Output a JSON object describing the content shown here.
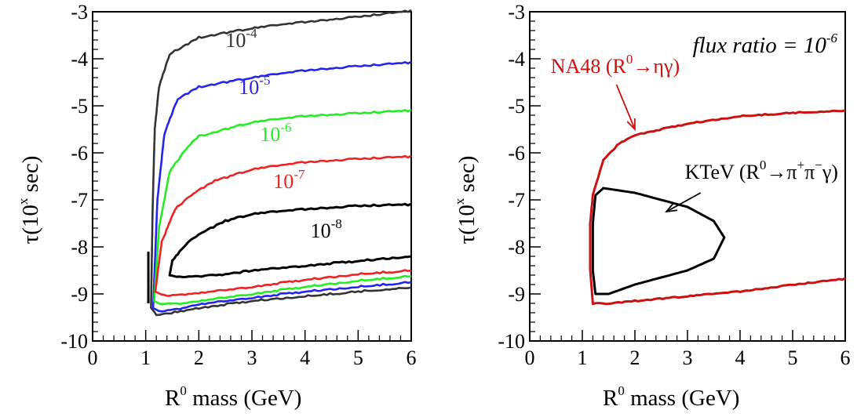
{
  "colors": {
    "black": "#000000",
    "blue": "#2424ee",
    "green": "#22ee22",
    "red": "#ee2222",
    "gray": "#333333",
    "darkred": "#cc1111"
  },
  "chart_data": [
    {
      "type": "line",
      "xlabel": "R0 mass (GeV)",
      "xlabel_parts": {
        "base": "R",
        "sup": "0",
        "rest": " mass (GeV)"
      },
      "ylabel": "τ(10x sec)",
      "ylabel_parts": {
        "pre": "τ(10",
        "sup": "x",
        "post": " sec)"
      },
      "xlim": [
        0,
        6
      ],
      "ylim": [
        -10,
        -3
      ],
      "xticks": [
        "0",
        "1",
        "2",
        "3",
        "4",
        "5",
        "6"
      ],
      "yticks": [
        "-10",
        "-9",
        "-8",
        "-7",
        "-6",
        "-5",
        "-4",
        "-3"
      ],
      "grid": false,
      "series": [
        {
          "name": "10-4",
          "label_base": "10",
          "label_sup": "-4",
          "color": "#333333",
          "label_pos": [
            2.8,
            -3.75
          ],
          "upper": [
            [
              1.1,
              -9.3
            ],
            [
              1.13,
              -7.2
            ],
            [
              1.17,
              -5.5
            ],
            [
              1.25,
              -4.6
            ],
            [
              1.45,
              -3.9
            ],
            [
              2,
              -3.55
            ],
            [
              3,
              -3.35
            ],
            [
              4,
              -3.22
            ],
            [
              5,
              -3.1
            ],
            [
              6,
              -2.98
            ]
          ],
          "lower": [
            [
              1.1,
              -9.3
            ],
            [
              1.2,
              -9.45
            ],
            [
              1.6,
              -9.38
            ],
            [
              2,
              -9.3
            ],
            [
              3,
              -9.15
            ],
            [
              4,
              -9.05
            ],
            [
              5,
              -8.95
            ],
            [
              6,
              -8.86
            ]
          ]
        },
        {
          "name": "10-5",
          "label_base": "10",
          "label_sup": "-5",
          "color": "#2424ee",
          "label_pos": [
            3.05,
            -4.75
          ],
          "upper": [
            [
              1.14,
              -9.3
            ],
            [
              1.22,
              -7.0
            ],
            [
              1.35,
              -5.6
            ],
            [
              1.6,
              -4.85
            ],
            [
              2,
              -4.6
            ],
            [
              3,
              -4.4
            ],
            [
              4,
              -4.25
            ],
            [
              5,
              -4.15
            ],
            [
              6,
              -4.08
            ]
          ],
          "lower": [
            [
              1.14,
              -9.3
            ],
            [
              1.3,
              -9.38
            ],
            [
              1.7,
              -9.3
            ],
            [
              2,
              -9.22
            ],
            [
              3,
              -9.08
            ],
            [
              4,
              -8.95
            ],
            [
              5,
              -8.85
            ],
            [
              6,
              -8.75
            ]
          ]
        },
        {
          "name": "10-6",
          "label_base": "10",
          "label_sup": "-6",
          "color": "#22ee22",
          "label_pos": [
            3.45,
            -5.75
          ],
          "upper": [
            [
              1.16,
              -9.15
            ],
            [
              1.25,
              -7.6
            ],
            [
              1.45,
              -6.4
            ],
            [
              1.8,
              -5.85
            ],
            [
              2,
              -5.65
            ],
            [
              3,
              -5.35
            ],
            [
              4,
              -5.22
            ],
            [
              5,
              -5.15
            ],
            [
              6,
              -5.1
            ]
          ],
          "lower": [
            [
              1.16,
              -9.15
            ],
            [
              1.3,
              -9.22
            ],
            [
              1.7,
              -9.2
            ],
            [
              2,
              -9.15
            ],
            [
              3,
              -9.0
            ],
            [
              4,
              -8.85
            ],
            [
              5,
              -8.72
            ],
            [
              6,
              -8.62
            ]
          ]
        },
        {
          "name": "10-7",
          "label_base": "10",
          "label_sup": "-7",
          "color": "#ee2222",
          "label_pos": [
            3.7,
            -6.75
          ],
          "upper": [
            [
              1.18,
              -8.95
            ],
            [
              1.3,
              -7.9
            ],
            [
              1.55,
              -7.2
            ],
            [
              1.9,
              -6.85
            ],
            [
              2.3,
              -6.6
            ],
            [
              3,
              -6.35
            ],
            [
              4,
              -6.2
            ],
            [
              5,
              -6.12
            ],
            [
              6,
              -6.08
            ]
          ],
          "lower": [
            [
              1.18,
              -8.95
            ],
            [
              1.4,
              -9.05
            ],
            [
              1.8,
              -9.0
            ],
            [
              2,
              -8.98
            ],
            [
              3,
              -8.85
            ],
            [
              4,
              -8.7
            ],
            [
              5,
              -8.58
            ],
            [
              6,
              -8.5
            ]
          ]
        },
        {
          "name": "10-8",
          "label_base": "10",
          "label_sup": "-8",
          "color": "#000000",
          "label_pos": [
            4.4,
            -7.8
          ],
          "upper": [
            [
              1.45,
              -8.6
            ],
            [
              1.5,
              -8.3
            ],
            [
              1.75,
              -7.95
            ],
            [
              2,
              -7.72
            ],
            [
              2.5,
              -7.45
            ],
            [
              3,
              -7.3
            ],
            [
              4,
              -7.2
            ],
            [
              5,
              -7.12
            ],
            [
              6,
              -7.1
            ]
          ],
          "lower": [
            [
              1.45,
              -8.6
            ],
            [
              1.7,
              -8.65
            ],
            [
              2.5,
              -8.58
            ],
            [
              3,
              -8.5
            ],
            [
              4,
              -8.4
            ],
            [
              5,
              -8.3
            ],
            [
              6,
              -8.2
            ]
          ]
        }
      ]
    },
    {
      "type": "line",
      "xlabel": "R0 mass (GeV)",
      "xlabel_parts": {
        "base": "R",
        "sup": "0",
        "rest": " mass (GeV)"
      },
      "ylabel": "τ(10x sec)",
      "ylabel_parts": {
        "pre": "τ(10",
        "sup": "x",
        "post": " sec)"
      },
      "xlim": [
        0,
        6
      ],
      "ylim": [
        -10,
        -3
      ],
      "xticks": [
        "0",
        "1",
        "2",
        "3",
        "4",
        "5",
        "6"
      ],
      "yticks": [
        "-10",
        "-9",
        "-8",
        "-7",
        "-6",
        "-5",
        "-4",
        "-3"
      ],
      "grid": false,
      "annotation": {
        "text": "flux ratio = 10-6",
        "base": "flux ratio = 10",
        "sup": "-6"
      },
      "series": [
        {
          "name": "NA48 (R0→ηγ)",
          "label_parts": {
            "pre": "NA48 (R",
            "sup": "0",
            "post": "→ηγ)"
          },
          "color": "#cc1111",
          "label_pos": [
            0.4,
            -4.3
          ],
          "arrow_from": [
            1.65,
            -4.55
          ],
          "arrow_to": [
            2.0,
            -5.5
          ],
          "points": [
            [
              6,
              -8.68
            ],
            [
              5,
              -8.8
            ],
            [
              4,
              -8.95
            ],
            [
              3,
              -9.05
            ],
            [
              2,
              -9.15
            ],
            [
              1.5,
              -9.2
            ],
            [
              1.2,
              -9.2
            ],
            [
              1.15,
              -8.5
            ],
            [
              1.15,
              -7.5
            ],
            [
              1.2,
              -6.9
            ],
            [
              1.4,
              -6.15
            ],
            [
              1.7,
              -5.8
            ],
            [
              2,
              -5.62
            ],
            [
              3,
              -5.38
            ],
            [
              4,
              -5.22
            ],
            [
              5,
              -5.15
            ],
            [
              6,
              -5.1
            ]
          ],
          "closed": false
        },
        {
          "name": "KTeV (R0→π+π−γ)",
          "label_parts": {
            "pre": "KTeV (R",
            "sup0": "0",
            "mid": "→π",
            "supp": "+",
            "pi2": "π",
            "supm": "−",
            "post": "γ)"
          },
          "color": "#000000",
          "label_pos": [
            2.95,
            -6.55
          ],
          "arrow_from": [
            3.25,
            -6.85
          ],
          "arrow_to": [
            2.6,
            -7.25
          ],
          "points": [
            [
              1.4,
              -6.75
            ],
            [
              2,
              -6.85
            ],
            [
              3,
              -7.15
            ],
            [
              3.5,
              -7.45
            ],
            [
              3.7,
              -7.8
            ],
            [
              3.5,
              -8.25
            ],
            [
              3,
              -8.5
            ],
            [
              2,
              -8.8
            ],
            [
              1.5,
              -9.0
            ],
            [
              1.25,
              -9.0
            ],
            [
              1.2,
              -8.5
            ],
            [
              1.2,
              -7.5
            ],
            [
              1.25,
              -6.9
            ],
            [
              1.4,
              -6.75
            ]
          ],
          "closed": true
        }
      ]
    }
  ]
}
